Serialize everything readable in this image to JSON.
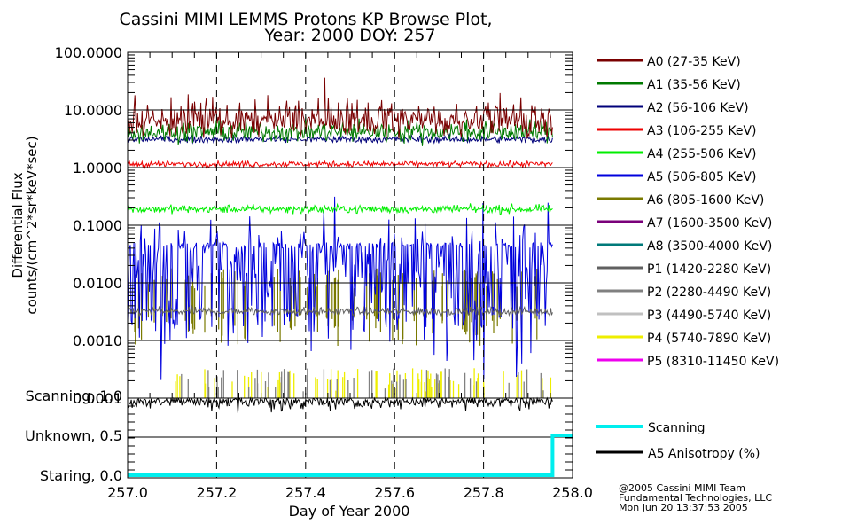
{
  "chart_data": [
    {
      "type": "line",
      "title": "Cassini MIMI LEMMS Protons KP Browse Plot,",
      "subtitle": "Year: 2000 DOY: 257",
      "ylabel_line1": "Differential Flux",
      "ylabel_line2": "counts/(cm^2*sr*keV*sec)",
      "yscale": "log",
      "ylim": [
        0.0001,
        100
      ],
      "yticks": [
        {
          "value": 100,
          "label": "100.0000"
        },
        {
          "value": 10,
          "label": "10.0000"
        },
        {
          "value": 1,
          "label": "1.0000"
        },
        {
          "value": 0.1,
          "label": "0.1000"
        },
        {
          "value": 0.01,
          "label": "0.0100"
        },
        {
          "value": 0.001,
          "label": "0.0010"
        },
        {
          "value": 0.0001,
          "label": "0.0001"
        }
      ],
      "xlim": [
        257.0,
        258.0
      ],
      "data_end_x": 257.955,
      "grid": "horizontal at decades, dashed vertical at 0.2 day",
      "legend_position": "right",
      "series": [
        {
          "name": "A0 (27-35 KeV)",
          "color": "#7a0000",
          "typical": 6.5,
          "spread": 0.28,
          "present": true
        },
        {
          "name": "A1 (35-56 KeV)",
          "color": "#007a00",
          "typical": 4.2,
          "spread": 0.18,
          "present": true
        },
        {
          "name": "A2 (56-106 KeV)",
          "color": "#00007a",
          "typical": 3.1,
          "spread": 0.06,
          "present": true
        },
        {
          "name": "A3 (106-255 KeV)",
          "color": "#ee0000",
          "typical": 1.15,
          "spread": 0.05,
          "present": true
        },
        {
          "name": "A4 (255-506 KeV)",
          "color": "#00ee00",
          "typical": 0.19,
          "spread": 0.07,
          "present": true
        },
        {
          "name": "A5 (506-805 KeV)",
          "color": "#0000dd",
          "typical": 0.02,
          "spread": 0.45,
          "present": true
        },
        {
          "name": "A6 (805-1600 KeV)",
          "color": "#7a7a00",
          "typical": 0.004,
          "spread": 0.5,
          "present": true
        },
        {
          "name": "A7 (1600-3500 KeV)",
          "color": "#7a007a",
          "typical": 0.0002,
          "spread": 0.2,
          "present": false
        },
        {
          "name": "A8 (3500-4000 KeV)",
          "color": "#007a7a",
          "typical": 0.0001,
          "spread": 0,
          "present": false
        },
        {
          "name": "P1 (1420-2280 KeV)",
          "color": "#606060",
          "typical": 0.0032,
          "spread": 0.07,
          "present": true
        },
        {
          "name": "P2 (2280-4490 KeV)",
          "color": "#808080",
          "typical": 0.0002,
          "spread": 0.25,
          "present": true
        },
        {
          "name": "P3 (4490-5740 KeV)",
          "color": "#c0c0c0",
          "typical": 0.0001,
          "spread": 0,
          "present": false
        },
        {
          "name": "P4 (5740-7890 KeV)",
          "color": "#eeee00",
          "typical": 0.0002,
          "spread": 0.25,
          "present": true
        },
        {
          "name": "P5 (8310-11450 KeV)",
          "color": "#ee00ee",
          "typical": 0.0002,
          "spread": 0.1,
          "present": false
        }
      ]
    },
    {
      "type": "line",
      "xlabel": "Day of Year 2000",
      "xticks": [
        "257.0",
        "257.2",
        "257.4",
        "257.6",
        "257.8",
        "258.0"
      ],
      "xtick_values": [
        257.0,
        257.2,
        257.4,
        257.6,
        257.8,
        258.0
      ],
      "ylim": [
        0.0,
        1.0
      ],
      "yticks": [
        {
          "value": 1.0,
          "label": "Scanning, 1.0"
        },
        {
          "value": 0.5,
          "label": "Unknown, 0.5"
        },
        {
          "value": 0.0,
          "label": "Staring, 0.0"
        }
      ],
      "series": [
        {
          "name": "Scanning",
          "color": "#00eeee",
          "x": [
            257.0,
            257.955,
            257.955,
            258.0
          ],
          "y": [
            0.0,
            0.0,
            0.5,
            0.5
          ]
        },
        {
          "name": "A5 Anisotropy (%)",
          "color": "#000000",
          "typical": 0.93,
          "spread": 0.06
        }
      ]
    }
  ],
  "footer": {
    "line1": "@2005 Cassini MIMI Team",
    "line2": "Fundamental Technologies, LLC",
    "line3": "Mon Jun 20 13:37:53 2005"
  }
}
